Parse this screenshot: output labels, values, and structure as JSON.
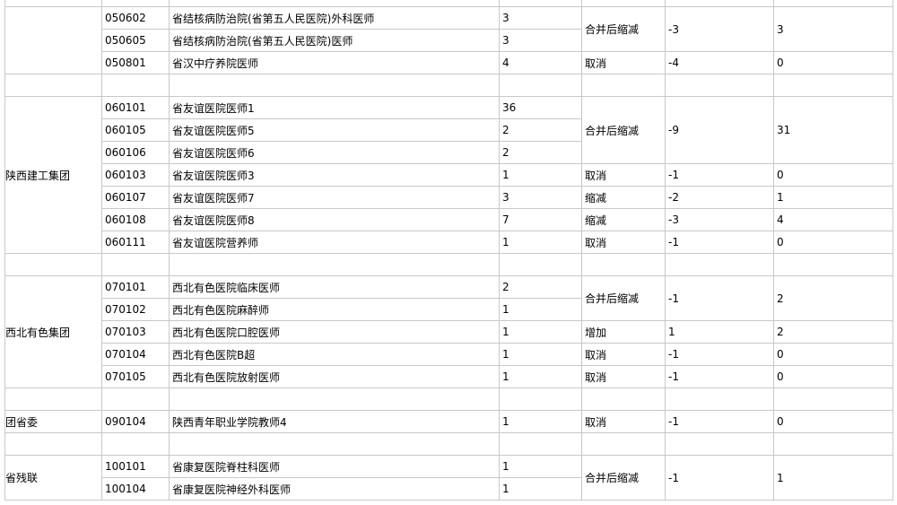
{
  "groups": [
    {
      "items": [
        {
          "action": "合并后缩减",
          "change": -3,
          "result": 3,
          "rows": [
            {
              "code": "050602",
              "position": "省结核病防治院(省第五人民医院)外科医师",
              "count": 3
            },
            {
              "code": "050605",
              "position": "省结核病防治院(省第五人民医院)医师",
              "count": 3
            }
          ]
        },
        {
          "action": "取消",
          "change": -4,
          "result": 0,
          "rows": [
            {
              "code": "050801",
              "position": "省汉中疗养院医师",
              "count": 4
            }
          ]
        }
      ]
    },
    {
      "name": "陕西建工集团",
      "items": [
        {
          "action": "合并后缩减",
          "change": -9,
          "result": 31,
          "rows": [
            {
              "code": "060101",
              "position": "省友谊医院医师1",
              "count": 36
            },
            {
              "code": "060105",
              "position": "省友谊医院医师5",
              "count": 2
            },
            {
              "code": "060106",
              "position": "省友谊医院医师6",
              "count": 2
            }
          ]
        },
        {
          "action": "取消",
          "change": -1,
          "result": 0,
          "rows": [
            {
              "code": "060103",
              "position": "省友谊医院医师3",
              "count": 1
            }
          ]
        },
        {
          "action": "缩减",
          "change": -2,
          "result": 1,
          "rows": [
            {
              "code": "060107",
              "position": "省友谊医院医师7",
              "count": 3
            }
          ]
        },
        {
          "action": "缩减",
          "change": -3,
          "result": 4,
          "rows": [
            {
              "code": "060108",
              "position": "省友谊医院医师8",
              "count": 7
            }
          ]
        },
        {
          "action": "取消",
          "change": -1,
          "result": 0,
          "rows": [
            {
              "code": "060111",
              "position": "省友谊医院营养师",
              "count": 1
            }
          ]
        }
      ]
    },
    {
      "name": "西北有色集团",
      "items": [
        {
          "action": "合并后缩减",
          "change": -1,
          "result": 2,
          "rows": [
            {
              "code": "070101",
              "position": "西北有色医院临床医师",
              "count": 2
            },
            {
              "code": "070102",
              "position": "西北有色医院麻醉师",
              "count": 1
            }
          ]
        },
        {
          "action": "增加",
          "change": 1,
          "result": 2,
          "rows": [
            {
              "code": "070103",
              "position": "西北有色医院口腔医师",
              "count": 1
            }
          ]
        },
        {
          "action": "取消",
          "change": -1,
          "result": 0,
          "rows": [
            {
              "code": "070104",
              "position": "西北有色医院B超",
              "count": 1
            }
          ]
        },
        {
          "action": "取消",
          "change": -1,
          "result": 0,
          "rows": [
            {
              "code": "070105",
              "position": "西北有色医院放射医师",
              "count": 1
            }
          ]
        }
      ]
    },
    {
      "name": "团省委",
      "items": [
        {
          "action": "取消",
          "change": -1,
          "result": 0,
          "rows": [
            {
              "code": "090104",
              "position": "陕西青年职业学院教师4",
              "count": 1
            }
          ]
        }
      ]
    },
    {
      "name": "省残联",
      "items": [
        {
          "action": "合并后缩减",
          "change": -1,
          "result": 1,
          "rows": [
            {
              "code": "100101",
              "position": "省康复医院脊柱科医师",
              "count": 1
            },
            {
              "code": "100104",
              "position": "省康复医院神经外科医师",
              "count": 1
            }
          ]
        }
      ]
    }
  ]
}
